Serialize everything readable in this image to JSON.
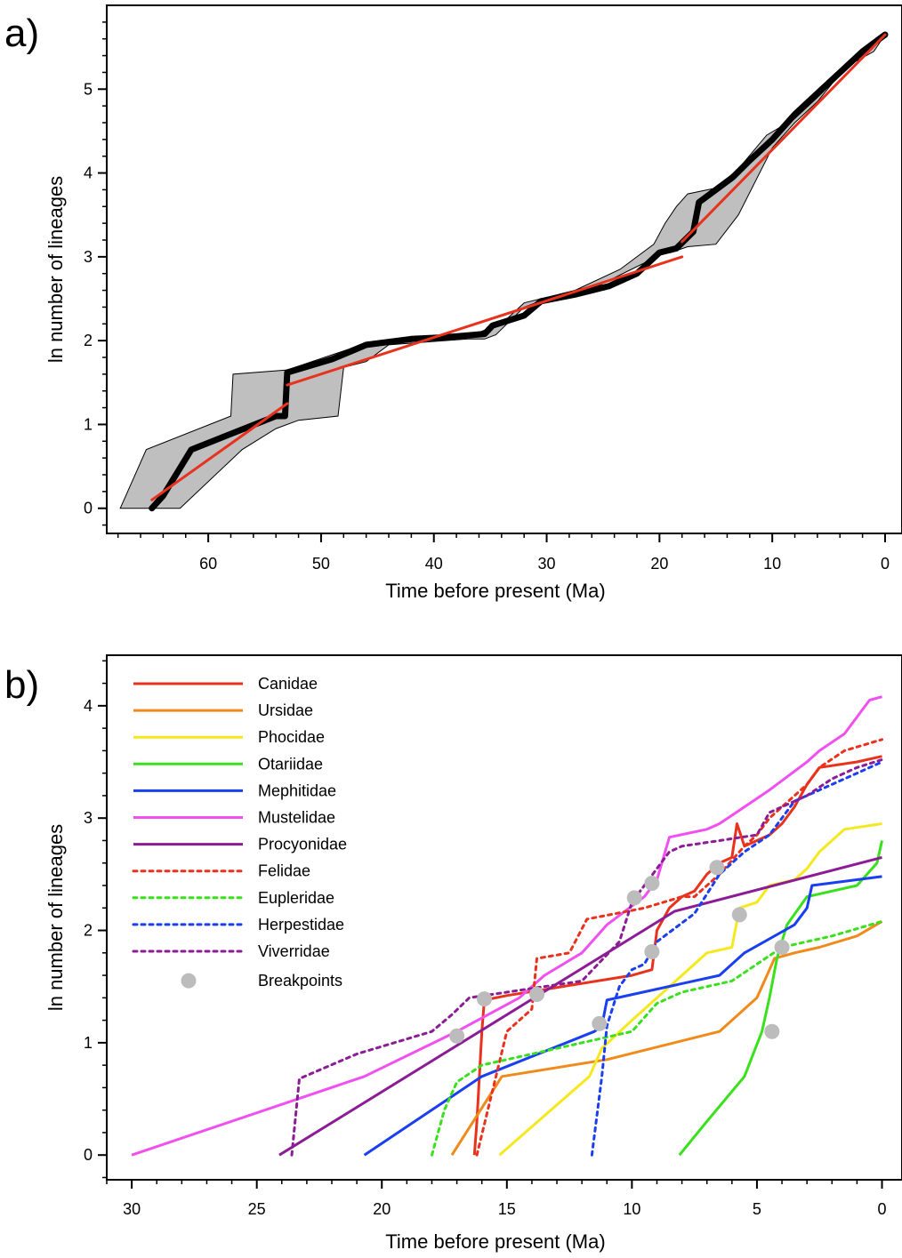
{
  "chart_data": [
    {
      "panel_label": "a)",
      "type": "line",
      "xlabel": "Time before present (Ma)",
      "ylabel": "ln number of lineages",
      "xlim": [
        69,
        -1.5
      ],
      "ylim": [
        -0.3,
        6.0
      ],
      "xticks": [
        60,
        50,
        40,
        30,
        20,
        10,
        0
      ],
      "yticks": [
        0,
        1,
        2,
        3,
        4,
        5
      ],
      "grid": false,
      "colors": {
        "ltt": "#000000",
        "fit": "#e8321e",
        "envelope": "#bfbfbf"
      },
      "envelope": {
        "upper": [
          [
            67.8,
            0
          ],
          [
            65.5,
            0.7
          ],
          [
            58,
            1.1
          ],
          [
            57.8,
            1.6
          ],
          [
            53,
            1.65
          ],
          [
            47.5,
            1.9
          ],
          [
            46,
            1.98
          ],
          [
            36,
            2.1
          ],
          [
            34,
            2.2
          ],
          [
            32,
            2.45
          ],
          [
            27.5,
            2.6
          ],
          [
            23.5,
            2.85
          ],
          [
            20.5,
            3.15
          ],
          [
            19.5,
            3.4
          ],
          [
            18.5,
            3.6
          ],
          [
            17.5,
            3.75
          ],
          [
            15,
            3.82
          ],
          [
            13,
            4.05
          ],
          [
            10.5,
            4.45
          ],
          [
            8,
            4.65
          ],
          [
            6,
            4.9
          ],
          [
            4.5,
            5.1
          ],
          [
            2.5,
            5.35
          ],
          [
            1,
            5.55
          ],
          [
            0,
            5.65
          ]
        ],
        "lower": [
          [
            0,
            5.65
          ],
          [
            1,
            5.45
          ],
          [
            3,
            5.3
          ],
          [
            4.5,
            5.1
          ],
          [
            6,
            4.85
          ],
          [
            8,
            4.6
          ],
          [
            10,
            4.3
          ],
          [
            13,
            3.5
          ],
          [
            15,
            3.15
          ],
          [
            17.5,
            3.12
          ],
          [
            19,
            3.05
          ],
          [
            20,
            3.05
          ],
          [
            21,
            2.95
          ],
          [
            22.5,
            2.85
          ],
          [
            24,
            2.75
          ],
          [
            25.5,
            2.65
          ],
          [
            27,
            2.62
          ],
          [
            30,
            2.5
          ],
          [
            32,
            2.4
          ],
          [
            34.5,
            2.07
          ],
          [
            35.5,
            2.02
          ],
          [
            37,
            2.02
          ],
          [
            44,
            1.95
          ],
          [
            46,
            1.75
          ],
          [
            48,
            1.68
          ],
          [
            48.5,
            1.1
          ],
          [
            52,
            1.05
          ],
          [
            54,
            0.95
          ],
          [
            57,
            0.7
          ],
          [
            62.5,
            0
          ]
        ]
      },
      "ltt": [
        [
          65,
          0
        ],
        [
          64,
          0.15
        ],
        [
          61.5,
          0.7
        ],
        [
          54,
          1.1
        ],
        [
          53.2,
          1.1
        ],
        [
          53,
          1.62
        ],
        [
          49,
          1.78
        ],
        [
          46,
          1.95
        ],
        [
          42,
          2.02
        ],
        [
          39,
          2.04
        ],
        [
          35.5,
          2.08
        ],
        [
          34.8,
          2.18
        ],
        [
          32,
          2.3
        ],
        [
          30.5,
          2.47
        ],
        [
          27.5,
          2.55
        ],
        [
          24.5,
          2.65
        ],
        [
          22,
          2.8
        ],
        [
          20,
          3.05
        ],
        [
          18.5,
          3.1
        ],
        [
          17,
          3.3
        ],
        [
          16.5,
          3.65
        ],
        [
          15,
          3.8
        ],
        [
          13.5,
          3.95
        ],
        [
          12,
          4.15
        ],
        [
          10,
          4.4
        ],
        [
          8,
          4.7
        ],
        [
          6,
          4.95
        ],
        [
          4,
          5.2
        ],
        [
          2,
          5.45
        ],
        [
          0.5,
          5.6
        ],
        [
          0,
          5.65
        ]
      ],
      "fits": [
        [
          [
            65,
            0.1
          ],
          [
            53,
            1.25
          ]
        ],
        [
          [
            53,
            1.47
          ],
          [
            18,
            3.0
          ]
        ],
        [
          [
            18,
            3.18
          ],
          [
            0,
            5.65
          ]
        ]
      ]
    },
    {
      "panel_label": "b)",
      "type": "line",
      "xlabel": "Time before present (Ma)",
      "ylabel": "ln number of lineages",
      "xlim": [
        31,
        -0.8
      ],
      "ylim": [
        -0.22,
        4.45
      ],
      "xticks": [
        30,
        25,
        20,
        15,
        10,
        5,
        0
      ],
      "yticks": [
        0,
        1,
        2,
        3,
        4
      ],
      "grid": false,
      "legend_position": "top-left",
      "series": [
        {
          "name": "Canidae",
          "color": "#e8321e",
          "dashed": false,
          "points": [
            [
              16.3,
              0
            ],
            [
              16.2,
              0.3
            ],
            [
              16,
              1.1
            ],
            [
              15.9,
              1.38
            ],
            [
              15,
              1.42
            ],
            [
              10,
              1.6
            ],
            [
              9.2,
              1.65
            ],
            [
              9,
              2.0
            ],
            [
              8.5,
              2.2
            ],
            [
              8,
              2.3
            ],
            [
              7.5,
              2.35
            ],
            [
              7,
              2.5
            ],
            [
              6.5,
              2.6
            ],
            [
              6,
              2.65
            ],
            [
              5.8,
              2.95
            ],
            [
              5.5,
              2.75
            ],
            [
              4.5,
              2.85
            ],
            [
              4,
              2.95
            ],
            [
              3.5,
              3.1
            ],
            [
              3,
              3.3
            ],
            [
              2.5,
              3.45
            ],
            [
              1,
              3.5
            ],
            [
              0,
              3.55
            ]
          ]
        },
        {
          "name": "Ursidae",
          "color": "#f08a1a",
          "dashed": false,
          "points": [
            [
              17.2,
              0
            ],
            [
              15.2,
              0.7
            ],
            [
              11,
              0.85
            ],
            [
              6.5,
              1.1
            ],
            [
              5,
              1.4
            ],
            [
              4.6,
              1.6
            ],
            [
              4.3,
              1.75
            ],
            [
              3.5,
              1.8
            ],
            [
              2.5,
              1.85
            ],
            [
              1,
              1.95
            ],
            [
              0,
              2.08
            ]
          ]
        },
        {
          "name": "Phocidae",
          "color": "#f5e81e",
          "dashed": false,
          "points": [
            [
              15.3,
              0
            ],
            [
              11.7,
              0.7
            ],
            [
              11.2,
              0.95
            ],
            [
              10,
              1.2
            ],
            [
              8,
              1.6
            ],
            [
              7,
              1.8
            ],
            [
              6,
              1.85
            ],
            [
              5.7,
              2.2
            ],
            [
              5,
              2.25
            ],
            [
              4.5,
              2.4
            ],
            [
              3.5,
              2.45
            ],
            [
              3,
              2.55
            ],
            [
              2.5,
              2.7
            ],
            [
              1.5,
              2.9
            ],
            [
              0,
              2.95
            ]
          ]
        },
        {
          "name": "Otariidae",
          "color": "#39e01c",
          "dashed": false,
          "points": [
            [
              8.1,
              0
            ],
            [
              7,
              0.3
            ],
            [
              5.5,
              0.7
            ],
            [
              4.8,
              1.1
            ],
            [
              4.5,
              1.4
            ],
            [
              4.2,
              1.75
            ],
            [
              3.8,
              2.05
            ],
            [
              3,
              2.3
            ],
            [
              2,
              2.35
            ],
            [
              1,
              2.4
            ],
            [
              0.2,
              2.6
            ],
            [
              0,
              2.8
            ]
          ]
        },
        {
          "name": "Mephitidae",
          "color": "#1a3ff0",
          "dashed": false,
          "points": [
            [
              20.7,
              0
            ],
            [
              16,
              0.7
            ],
            [
              11.5,
              1.1
            ],
            [
              11.2,
              1.15
            ],
            [
              11,
              1.38
            ],
            [
              6.5,
              1.6
            ],
            [
              5.5,
              1.8
            ],
            [
              3.5,
              2.05
            ],
            [
              3,
              2.2
            ],
            [
              2.8,
              2.4
            ],
            [
              0,
              2.48
            ]
          ]
        },
        {
          "name": "Mustelidae",
          "color": "#f050f0",
          "dashed": false,
          "points": [
            [
              30,
              0
            ],
            [
              20.7,
              0.7
            ],
            [
              17,
              1.1
            ],
            [
              14.5,
              1.4
            ],
            [
              13.5,
              1.6
            ],
            [
              12,
              1.8
            ],
            [
              11,
              2.05
            ],
            [
              9.5,
              2.3
            ],
            [
              9,
              2.45
            ],
            [
              8.5,
              2.83
            ],
            [
              7,
              2.9
            ],
            [
              6.5,
              2.95
            ],
            [
              5.5,
              3.1
            ],
            [
              4.5,
              3.25
            ],
            [
              3,
              3.5
            ],
            [
              2.5,
              3.6
            ],
            [
              1.5,
              3.75
            ],
            [
              1,
              3.9
            ],
            [
              0.5,
              4.05
            ],
            [
              0,
              4.08
            ]
          ]
        },
        {
          "name": "Procyonidae",
          "color": "#8c1c96",
          "dashed": false,
          "points": [
            [
              24.1,
              0
            ],
            [
              8.3,
              2.17
            ],
            [
              0,
              2.65
            ]
          ]
        },
        {
          "name": "Felidae",
          "color": "#e8321e",
          "dashed": true,
          "points": [
            [
              16.2,
              0
            ],
            [
              15,
              1.1
            ],
            [
              14,
              1.3
            ],
            [
              13.8,
              1.75
            ],
            [
              12.5,
              1.8
            ],
            [
              11.8,
              2.1
            ],
            [
              9.5,
              2.2
            ],
            [
              8,
              2.3
            ],
            [
              7.5,
              2.3
            ],
            [
              6.5,
              2.5
            ],
            [
              5.5,
              2.75
            ],
            [
              5,
              2.85
            ],
            [
              4.5,
              3.0
            ],
            [
              4,
              3.1
            ],
            [
              3,
              3.3
            ],
            [
              2.5,
              3.45
            ],
            [
              1.5,
              3.6
            ],
            [
              0,
              3.7
            ]
          ]
        },
        {
          "name": "Eupleridae",
          "color": "#39e01c",
          "dashed": true,
          "points": [
            [
              18,
              0
            ],
            [
              17.5,
              0.4
            ],
            [
              17,
              0.65
            ],
            [
              16,
              0.8
            ],
            [
              12,
              1.0
            ],
            [
              10,
              1.1
            ],
            [
              9,
              1.35
            ],
            [
              8,
              1.45
            ],
            [
              6,
              1.55
            ],
            [
              4,
              1.85
            ],
            [
              2,
              1.95
            ],
            [
              0,
              2.08
            ]
          ]
        },
        {
          "name": "Herpestidae",
          "color": "#1a3ff0",
          "dashed": true,
          "points": [
            [
              11.6,
              0
            ],
            [
              11.2,
              0.7
            ],
            [
              11,
              1.15
            ],
            [
              10.5,
              1.5
            ],
            [
              10,
              1.65
            ],
            [
              9.5,
              1.7
            ],
            [
              9,
              1.9
            ],
            [
              7.5,
              2.15
            ],
            [
              6.5,
              2.5
            ],
            [
              5.5,
              2.7
            ],
            [
              4.5,
              2.85
            ],
            [
              3.5,
              3.15
            ],
            [
              2,
              3.3
            ],
            [
              1,
              3.4
            ],
            [
              0,
              3.5
            ]
          ]
        },
        {
          "name": "Viverridae",
          "color": "#8c1c96",
          "dashed": true,
          "points": [
            [
              23.6,
              0
            ],
            [
              23.3,
              0.68
            ],
            [
              21,
              0.9
            ],
            [
              18,
              1.1
            ],
            [
              17.2,
              1.25
            ],
            [
              16.5,
              1.4
            ],
            [
              13.5,
              1.5
            ],
            [
              12,
              1.55
            ],
            [
              10.5,
              1.9
            ],
            [
              10,
              2.25
            ],
            [
              9.5,
              2.4
            ],
            [
              8.5,
              2.7
            ],
            [
              8,
              2.75
            ],
            [
              6.5,
              2.8
            ],
            [
              5,
              2.85
            ],
            [
              4.5,
              3.05
            ],
            [
              3,
              3.2
            ],
            [
              2,
              3.35
            ],
            [
              1,
              3.45
            ],
            [
              0,
              3.52
            ]
          ]
        }
      ],
      "breakpoints": {
        "name": "Breakpoints",
        "color": "#bcbcbc",
        "points": [
          [
            17,
            1.06
          ],
          [
            15.9,
            1.39
          ],
          [
            13.8,
            1.43
          ],
          [
            11.3,
            1.17
          ],
          [
            9.9,
            2.29
          ],
          [
            9.2,
            2.42
          ],
          [
            9.2,
            1.81
          ],
          [
            6.6,
            2.56
          ],
          [
            5.7,
            2.14
          ],
          [
            4.4,
            1.1
          ],
          [
            4,
            1.85
          ]
        ]
      }
    }
  ]
}
